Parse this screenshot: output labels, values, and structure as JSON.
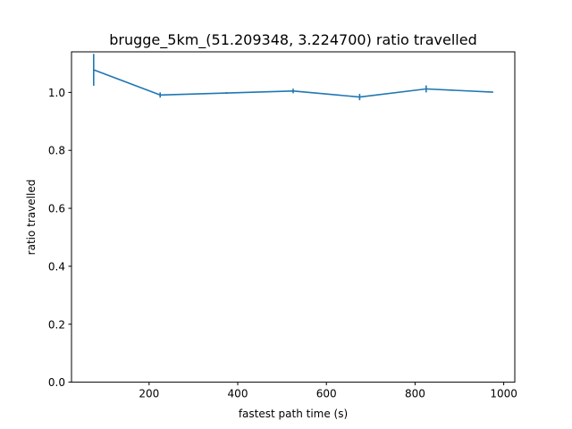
{
  "chart_data": {
    "type": "line",
    "title": "brugge_5km_(51.209348, 3.224700) ratio travelled",
    "xlabel": "fastest path time (s)",
    "ylabel": "ratio travelled",
    "xlim": [
      25,
      1025
    ],
    "ylim": [
      0.0,
      1.14
    ],
    "xticks": [
      200,
      400,
      600,
      800,
      1000
    ],
    "yticks": [
      0.0,
      0.2,
      0.4,
      0.6,
      0.8,
      1.0
    ],
    "grid": false,
    "series": [
      {
        "color": "#1f77b4",
        "x": [
          75,
          225,
          375,
          525,
          675,
          825,
          975
        ],
        "y": [
          1.078,
          0.991,
          0.998,
          1.005,
          0.984,
          1.012,
          1.001
        ],
        "err": [
          0.055,
          0.009,
          0.003,
          0.008,
          0.011,
          0.012,
          0.002
        ]
      }
    ]
  }
}
